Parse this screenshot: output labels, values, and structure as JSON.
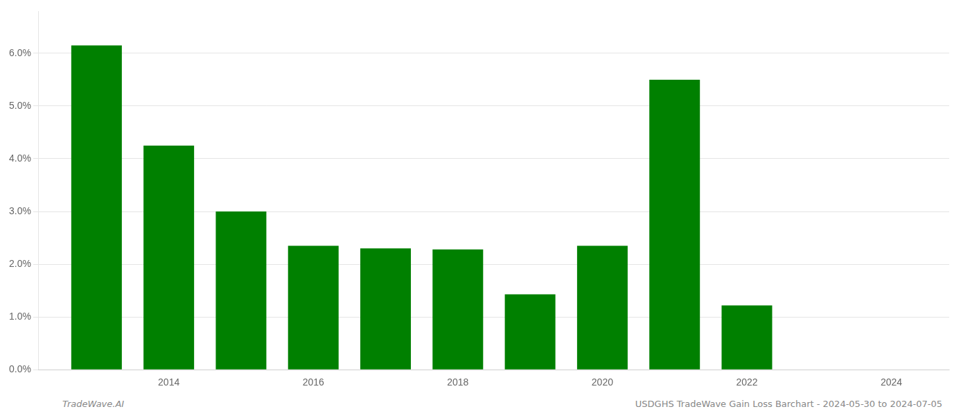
{
  "chart_data": {
    "type": "bar",
    "x": [
      2013,
      2014,
      2015,
      2016,
      2017,
      2018,
      2019,
      2020,
      2021,
      2022,
      2023
    ],
    "values": [
      0.0615,
      0.0425,
      0.03,
      0.0235,
      0.023,
      0.0228,
      0.0143,
      0.0235,
      0.055,
      0.0122,
      0.0
    ],
    "color": "#008000",
    "xlim": [
      2012.2,
      2024.8
    ],
    "xticks": [
      2014,
      2016,
      2018,
      2020,
      2022,
      2024
    ],
    "ylim": [
      0.0,
      0.068
    ],
    "yticks": [
      {
        "value": 0.0,
        "label": "0.0%"
      },
      {
        "value": 0.01,
        "label": "1.0%"
      },
      {
        "value": 0.02,
        "label": "2.0%"
      },
      {
        "value": 0.03,
        "label": "3.0%"
      },
      {
        "value": 0.04,
        "label": "4.0%"
      },
      {
        "value": 0.05,
        "label": "5.0%"
      },
      {
        "value": 0.06,
        "label": "6.0%"
      }
    ],
    "grid": true,
    "annotations": [
      "TradeWave.AI",
      "USDGHS TradeWave Gain Loss Barchart - 2024-05-30 to 2024-07-05"
    ]
  }
}
